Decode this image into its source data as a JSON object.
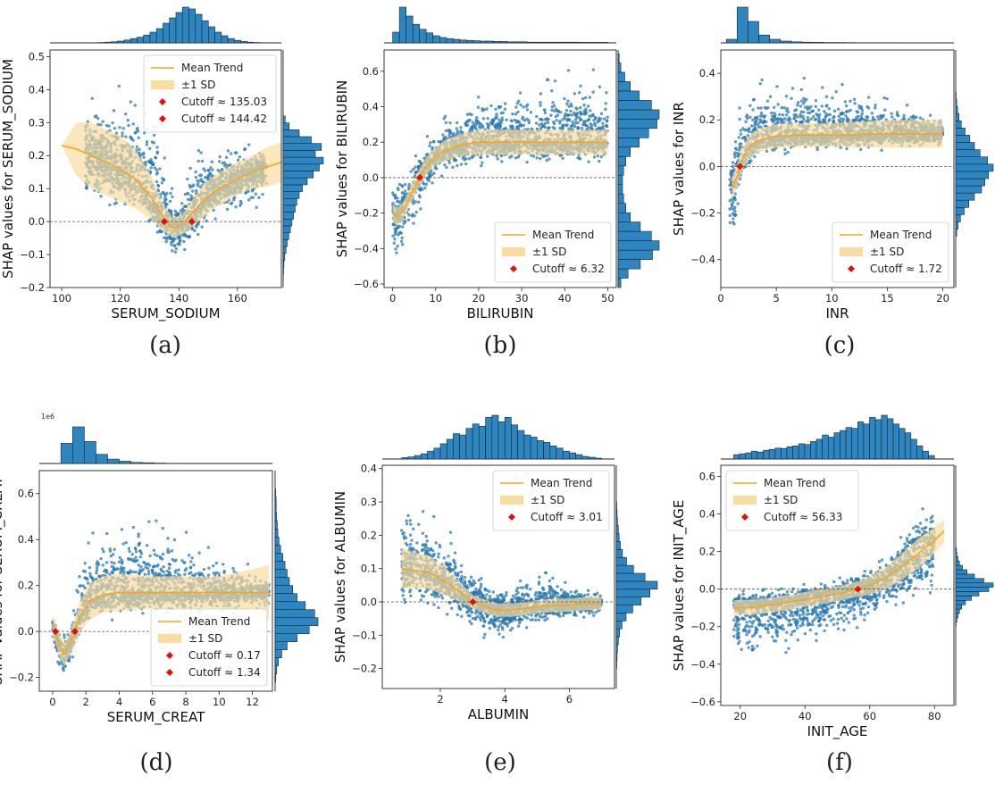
{
  "figure": {
    "colors": {
      "scatter": "#2e86c1",
      "scatter_edge": "#1f5f8f",
      "trend": "#f5a623",
      "band": "#fbdca0",
      "cutoff": "#e0100a",
      "hist_fill": "#2e86c1",
      "hist_edge": "#1a2533"
    }
  },
  "chart_data": [
    {
      "id": "a",
      "caption": "(a)",
      "type": "scatter",
      "xlabel": "SERUM_SODIUM",
      "ylabel": "SHAP values for SERUM_SODIUM",
      "xlim": [
        96,
        175
      ],
      "ylim": [
        -0.2,
        0.52
      ],
      "xticks": [
        100,
        120,
        140,
        160
      ],
      "yticks": [
        -0.2,
        -0.1,
        0.0,
        0.1,
        0.2,
        0.3,
        0.4,
        0.5
      ],
      "ytick_labels": [
        "−0.2",
        "−0.1",
        "0.0",
        "0.1",
        "0.2",
        "0.3",
        "0.4",
        "0.5"
      ],
      "legend_position": "top-right",
      "legend": [
        "Mean Trend",
        "±1 SD",
        "Cutoff ≈ 135.03",
        "Cutoff ≈ 144.42"
      ],
      "cutoffs": [
        135.03,
        144.42
      ],
      "trend": {
        "x": [
          100,
          105,
          110,
          115,
          120,
          125,
          130,
          135,
          138,
          141,
          144,
          148,
          152,
          156,
          160,
          165,
          170,
          175
        ],
        "mean": [
          0.23,
          0.22,
          0.2,
          0.18,
          0.16,
          0.13,
          0.08,
          0.01,
          -0.02,
          -0.01,
          0.02,
          0.06,
          0.09,
          0.11,
          0.13,
          0.15,
          0.165,
          0.18
        ],
        "sd": [
          0.0,
          0.08,
          0.1,
          0.1,
          0.1,
          0.09,
          0.07,
          0.04,
          0.03,
          0.03,
          0.04,
          0.05,
          0.05,
          0.05,
          0.05,
          0.05,
          0.06,
          0.06
        ]
      },
      "scatter_range": [
        108,
        170
      ],
      "scatter_spread": {
        "x": [
          108,
          115,
          122,
          128,
          133,
          137,
          140,
          143,
          147,
          152,
          158,
          165,
          170
        ],
        "lo": [
          0.03,
          0.0,
          -0.01,
          -0.02,
          -0.07,
          -0.13,
          -0.17,
          -0.13,
          -0.05,
          0.0,
          0.01,
          0.02,
          0.02
        ],
        "hi": [
          0.38,
          0.42,
          0.49,
          0.45,
          0.38,
          0.15,
          0.08,
          0.2,
          0.3,
          0.28,
          0.25,
          0.24,
          0.2
        ]
      },
      "top_hist": [
        0.2,
        0.5,
        1,
        2,
        3,
        5,
        8,
        12,
        16,
        22,
        30,
        40,
        55,
        70,
        85,
        100,
        95,
        80,
        62,
        45,
        30,
        20,
        12,
        7,
        4,
        2,
        1,
        0.5
      ],
      "top_hist_range": [
        108,
        170
      ],
      "right_hist": [
        0.5,
        1,
        2,
        4,
        7,
        10,
        14,
        18,
        22,
        26,
        30,
        34,
        40,
        48,
        60,
        75,
        90,
        100,
        80,
        95,
        70,
        40,
        15,
        5
      ],
      "right_hist_range": [
        -0.18,
        0.32
      ]
    },
    {
      "id": "b",
      "caption": "(b)",
      "type": "scatter",
      "xlabel": "BILIRUBIN",
      "ylabel": "SHAP values for BILIRUBIN",
      "xlim": [
        -2,
        52
      ],
      "ylim": [
        -0.62,
        0.72
      ],
      "xticks": [
        0,
        10,
        20,
        30,
        40,
        50
      ],
      "yticks": [
        -0.6,
        -0.4,
        -0.2,
        0.0,
        0.2,
        0.4,
        0.6
      ],
      "ytick_labels": [
        "−0.6",
        "−0.4",
        "−0.2",
        "0.0",
        "0.2",
        "0.4",
        "0.6"
      ],
      "legend_position": "bottom-right",
      "legend": [
        "Mean Trend",
        "±1 SD",
        "Cutoff ≈ 6.32"
      ],
      "cutoffs": [
        6.32
      ],
      "trend": {
        "x": [
          0,
          1,
          2,
          3,
          4,
          5,
          6,
          7,
          8,
          10,
          12,
          15,
          20,
          25,
          30,
          40,
          50
        ],
        "mean": [
          -0.2,
          -0.22,
          -0.2,
          -0.16,
          -0.11,
          -0.06,
          -0.01,
          0.03,
          0.07,
          0.12,
          0.15,
          0.18,
          0.2,
          0.2,
          0.2,
          0.2,
          0.2
        ],
        "sd": [
          0.05,
          0.05,
          0.05,
          0.05,
          0.05,
          0.05,
          0.05,
          0.05,
          0.05,
          0.05,
          0.06,
          0.06,
          0.07,
          0.07,
          0.07,
          0.07,
          0.07
        ]
      },
      "scatter_range": [
        0,
        50
      ],
      "scatter_spread": {
        "x": [
          0,
          2,
          4,
          6,
          8,
          10,
          14,
          18,
          22,
          26,
          30,
          35,
          40,
          45,
          50
        ],
        "lo": [
          -0.5,
          -0.55,
          -0.4,
          -0.3,
          -0.15,
          -0.05,
          0.0,
          0.02,
          0.05,
          0.05,
          0.05,
          0.05,
          0.05,
          0.05,
          0.05
        ],
        "hi": [
          0.05,
          0.05,
          0.12,
          0.2,
          0.28,
          0.35,
          0.45,
          0.5,
          0.55,
          0.6,
          0.63,
          0.66,
          0.68,
          0.66,
          0.64
        ]
      },
      "top_hist": [
        30,
        100,
        75,
        52,
        38,
        28,
        20,
        15,
        12,
        10,
        8,
        7,
        6,
        5,
        5,
        4,
        4,
        3,
        3,
        3,
        2,
        2,
        2,
        2,
        2,
        2,
        2,
        2,
        1.5,
        1.5,
        1.5,
        1.5
      ],
      "top_hist_range": [
        0,
        50
      ],
      "right_hist": [
        5,
        18,
        40,
        62,
        74,
        60,
        40,
        22,
        14,
        10,
        8,
        8,
        10,
        14,
        22,
        38,
        55,
        70,
        74,
        60,
        38,
        22,
        12,
        5,
        2
      ],
      "right_hist_range": [
        -0.62,
        0.7
      ]
    },
    {
      "id": "c",
      "caption": "(c)",
      "type": "scatter",
      "xlabel": "INR",
      "ylabel": "SHAP values for INR",
      "xlim": [
        0,
        21
      ],
      "ylim": [
        -0.52,
        0.5
      ],
      "xticks": [
        0,
        5,
        10,
        15,
        20
      ],
      "yticks": [
        -0.4,
        -0.2,
        0.0,
        0.2,
        0.4
      ],
      "ytick_labels": [
        "−0.4",
        "−0.2",
        "0.0",
        "0.2",
        "0.4"
      ],
      "legend_position": "bottom-right",
      "legend": [
        "Mean Trend",
        "±1 SD",
        "Cutoff ≈ 1.72"
      ],
      "cutoffs": [
        1.72
      ],
      "trend": {
        "x": [
          1,
          1.2,
          1.5,
          1.72,
          2,
          2.5,
          3,
          4,
          5,
          7,
          10,
          15,
          20
        ],
        "mean": [
          -0.1,
          -0.07,
          -0.04,
          0.0,
          0.04,
          0.08,
          0.1,
          0.12,
          0.13,
          0.135,
          0.135,
          0.14,
          0.14
        ],
        "sd": [
          0.05,
          0.05,
          0.05,
          0.05,
          0.05,
          0.05,
          0.05,
          0.05,
          0.05,
          0.05,
          0.05,
          0.06,
          0.06
        ]
      },
      "scatter_range": [
        0.8,
        20
      ],
      "scatter_spread": {
        "x": [
          0.8,
          1.2,
          1.6,
          2,
          3,
          4,
          6,
          8,
          10,
          12,
          15,
          18,
          20
        ],
        "lo": [
          -0.35,
          -0.45,
          -0.2,
          -0.05,
          0.0,
          0.02,
          0.03,
          0.05,
          0.05,
          0.05,
          0.06,
          0.06,
          0.08
        ],
        "hi": [
          0.05,
          0.2,
          0.32,
          0.4,
          0.44,
          0.45,
          0.43,
          0.42,
          0.4,
          0.38,
          0.36,
          0.28,
          0.22
        ]
      },
      "top_hist": [
        10,
        100,
        60,
        22,
        10,
        5,
        3,
        2,
        1.5,
        1,
        1,
        0.8,
        0.6,
        0.5,
        0.5,
        0.4,
        0.3,
        0.3,
        0.2,
        0.2
      ],
      "top_hist_range": [
        0.5,
        20
      ],
      "right_hist": [
        2,
        5,
        10,
        18,
        28,
        40,
        55,
        62,
        70,
        80,
        68,
        52,
        40,
        30,
        20,
        12,
        7,
        4,
        2,
        1
      ],
      "right_hist_range": [
        -0.3,
        0.32
      ]
    },
    {
      "id": "d",
      "caption": "(d)",
      "type": "scatter",
      "xlabel": "SERUM_CREAT",
      "ylabel": "SHAP values for SERUM_CREAT",
      "offset_text": "1e6",
      "xlim": [
        -0.8,
        13.2
      ],
      "ylim": [
        -0.26,
        0.7
      ],
      "xticks": [
        0,
        2,
        4,
        6,
        8,
        10,
        12
      ],
      "yticks": [
        -0.2,
        0.0,
        0.2,
        0.4,
        0.6
      ],
      "ytick_labels": [
        "−0.2",
        "0.0",
        "0.2",
        "0.4",
        "0.6"
      ],
      "legend_position": "bottom-right",
      "legend": [
        "Mean Trend",
        "±1 SD",
        "Cutoff ≈ 0.17",
        "Cutoff ≈ 1.34"
      ],
      "cutoffs": [
        0.17,
        1.34
      ],
      "trend": {
        "x": [
          0,
          0.17,
          0.4,
          0.7,
          1.0,
          1.34,
          1.7,
          2.2,
          3,
          4,
          6,
          8,
          10,
          12,
          13
        ],
        "mean": [
          0.02,
          0.0,
          -0.06,
          -0.1,
          -0.06,
          0.0,
          0.07,
          0.13,
          0.16,
          0.17,
          0.17,
          0.17,
          0.17,
          0.17,
          0.17
        ],
        "sd": [
          0.05,
          0.05,
          0.05,
          0.05,
          0.05,
          0.06,
          0.07,
          0.08,
          0.08,
          0.08,
          0.07,
          0.07,
          0.07,
          0.1,
          0.12
        ]
      },
      "scatter_range": [
        0,
        13
      ],
      "scatter_spread": {
        "x": [
          0,
          0.5,
          1,
          1.5,
          2,
          3,
          4,
          5,
          6,
          7,
          8,
          9,
          10,
          11,
          12,
          13
        ],
        "lo": [
          -0.05,
          -0.24,
          -0.2,
          -0.05,
          0.0,
          0.02,
          0.03,
          0.04,
          0.04,
          0.05,
          0.05,
          0.06,
          0.06,
          0.06,
          0.08,
          0.1
        ],
        "hi": [
          0.08,
          0.0,
          0.05,
          0.3,
          0.45,
          0.55,
          0.6,
          0.6,
          0.58,
          0.55,
          0.48,
          0.42,
          0.35,
          0.32,
          0.3,
          0.25
        ]
      },
      "top_hist": [
        55,
        100,
        60,
        25,
        12,
        6,
        3,
        2,
        1,
        0.5
      ],
      "top_hist_range": [
        0.5,
        7.5
      ],
      "right_hist": [
        1,
        3,
        6,
        12,
        22,
        40,
        62,
        78,
        72,
        55,
        40,
        32,
        26,
        22,
        18,
        14,
        10,
        7,
        5,
        4,
        3,
        2,
        2,
        1
      ],
      "right_hist_range": [
        -0.22,
        0.62
      ]
    },
    {
      "id": "e",
      "caption": "(e)",
      "type": "scatter",
      "xlabel": "ALBUMIN",
      "ylabel": "SHAP values for ALBUMIN",
      "xlim": [
        0.2,
        7.4
      ],
      "ylim": [
        -0.26,
        0.41
      ],
      "xticks": [
        2,
        4,
        6
      ],
      "yticks": [
        -0.2,
        -0.1,
        0.0,
        0.1,
        0.2,
        0.3,
        0.4
      ],
      "ytick_labels": [
        "−0.2",
        "−0.1",
        "0.0",
        "0.1",
        "0.2",
        "0.3",
        "0.4"
      ],
      "legend_position": "top-right",
      "legend": [
        "Mean Trend",
        "±1 SD",
        "Cutoff ≈ 3.01"
      ],
      "cutoffs": [
        3.01
      ],
      "trend": {
        "x": [
          0.8,
          1.2,
          1.6,
          2.0,
          2.4,
          2.8,
          3.01,
          3.4,
          3.8,
          4.2,
          4.6,
          5.0,
          5.5,
          6.0,
          6.5,
          7.0
        ],
        "mean": [
          0.1,
          0.095,
          0.09,
          0.07,
          0.045,
          0.015,
          0.0,
          -0.015,
          -0.025,
          -0.025,
          -0.02,
          -0.015,
          -0.01,
          -0.01,
          -0.005,
          -0.005
        ],
        "sd": [
          0.06,
          0.055,
          0.05,
          0.045,
          0.035,
          0.025,
          0.02,
          0.02,
          0.02,
          0.02,
          0.02,
          0.02,
          0.02,
          0.02,
          0.02,
          0.02
        ]
      },
      "scatter_range": [
        0.8,
        7
      ],
      "scatter_spread": {
        "x": [
          0.8,
          1.4,
          2.0,
          2.6,
          3.0,
          3.4,
          3.8,
          4.2,
          4.6,
          5.0,
          5.5,
          6.0,
          6.5,
          7.0
        ],
        "lo": [
          -0.05,
          -0.04,
          -0.06,
          -0.08,
          -0.1,
          -0.13,
          -0.14,
          -0.13,
          -0.1,
          -0.08,
          -0.07,
          -0.06,
          -0.06,
          -0.05
        ],
        "hi": [
          0.35,
          0.33,
          0.3,
          0.22,
          0.12,
          0.08,
          0.06,
          0.08,
          0.12,
          0.14,
          0.1,
          0.06,
          0.04,
          0.03
        ]
      },
      "top_hist": [
        3,
        5,
        8,
        12,
        18,
        25,
        35,
        45,
        58,
        55,
        70,
        80,
        75,
        95,
        100,
        85,
        95,
        78,
        65,
        55,
        50,
        42,
        38,
        30,
        25,
        18,
        14,
        10,
        6,
        4,
        2
      ],
      "top_hist_range": [
        0.8,
        7
      ],
      "right_hist": [
        1,
        2,
        3,
        5,
        8,
        14,
        24,
        40,
        60,
        82,
        100,
        70,
        42,
        25,
        15,
        10,
        7,
        5,
        3,
        2,
        1
      ],
      "right_hist_range": [
        -0.2,
        0.3
      ]
    },
    {
      "id": "f",
      "caption": "(f)",
      "type": "scatter",
      "xlabel": "INIT_AGE",
      "ylabel": "SHAP values for INIT_AGE",
      "xlim": [
        14,
        86
      ],
      "ylim": [
        -0.62,
        0.66
      ],
      "xticks": [
        20,
        40,
        60,
        80
      ],
      "yticks": [
        -0.6,
        -0.4,
        -0.2,
        0.0,
        0.2,
        0.4,
        0.6
      ],
      "ytick_labels": [
        "−0.6",
        "−0.4",
        "−0.2",
        "0.0",
        "0.2",
        "0.4",
        "0.6"
      ],
      "legend_position": "top-left",
      "legend": [
        "Mean Trend",
        "±1 SD",
        "Cutoff ≈ 56.33"
      ],
      "cutoffs": [
        56.33
      ],
      "trend": {
        "x": [
          18,
          25,
          30,
          35,
          40,
          45,
          50,
          55,
          56.33,
          60,
          65,
          70,
          75,
          80,
          83
        ],
        "mean": [
          -0.1,
          -0.095,
          -0.085,
          -0.07,
          -0.055,
          -0.04,
          -0.025,
          -0.005,
          0.0,
          0.02,
          0.06,
          0.12,
          0.19,
          0.26,
          0.31
        ],
        "sd": [
          0.04,
          0.04,
          0.04,
          0.04,
          0.04,
          0.04,
          0.04,
          0.04,
          0.04,
          0.05,
          0.06,
          0.07,
          0.08,
          0.07,
          0.06
        ]
      },
      "scatter_range": [
        18,
        80
      ],
      "scatter_spread": {
        "x": [
          18,
          25,
          30,
          35,
          40,
          45,
          50,
          55,
          60,
          65,
          70,
          75,
          80
        ],
        "lo": [
          -0.45,
          -0.45,
          -0.44,
          -0.42,
          -0.38,
          -0.35,
          -0.32,
          -0.28,
          -0.24,
          -0.2,
          -0.18,
          -0.15,
          -0.1
        ],
        "hi": [
          0.02,
          0.02,
          0.03,
          0.03,
          0.04,
          0.05,
          0.07,
          0.1,
          0.15,
          0.22,
          0.35,
          0.55,
          0.45
        ]
      },
      "top_hist": [
        10,
        12,
        14,
        18,
        16,
        20,
        22,
        25,
        24,
        28,
        30,
        35,
        33,
        40,
        45,
        55,
        50,
        60,
        65,
        72,
        70,
        85,
        80,
        95,
        90,
        100,
        92,
        80,
        70,
        60,
        45,
        30,
        18,
        8
      ],
      "top_hist_range": [
        18,
        80
      ],
      "right_hist": [
        1,
        3,
        6,
        10,
        16,
        26,
        42,
        62,
        88,
        100,
        75,
        50,
        30,
        18,
        10,
        6,
        3,
        2
      ],
      "right_hist_range": [
        -0.2,
        0.22
      ]
    }
  ]
}
